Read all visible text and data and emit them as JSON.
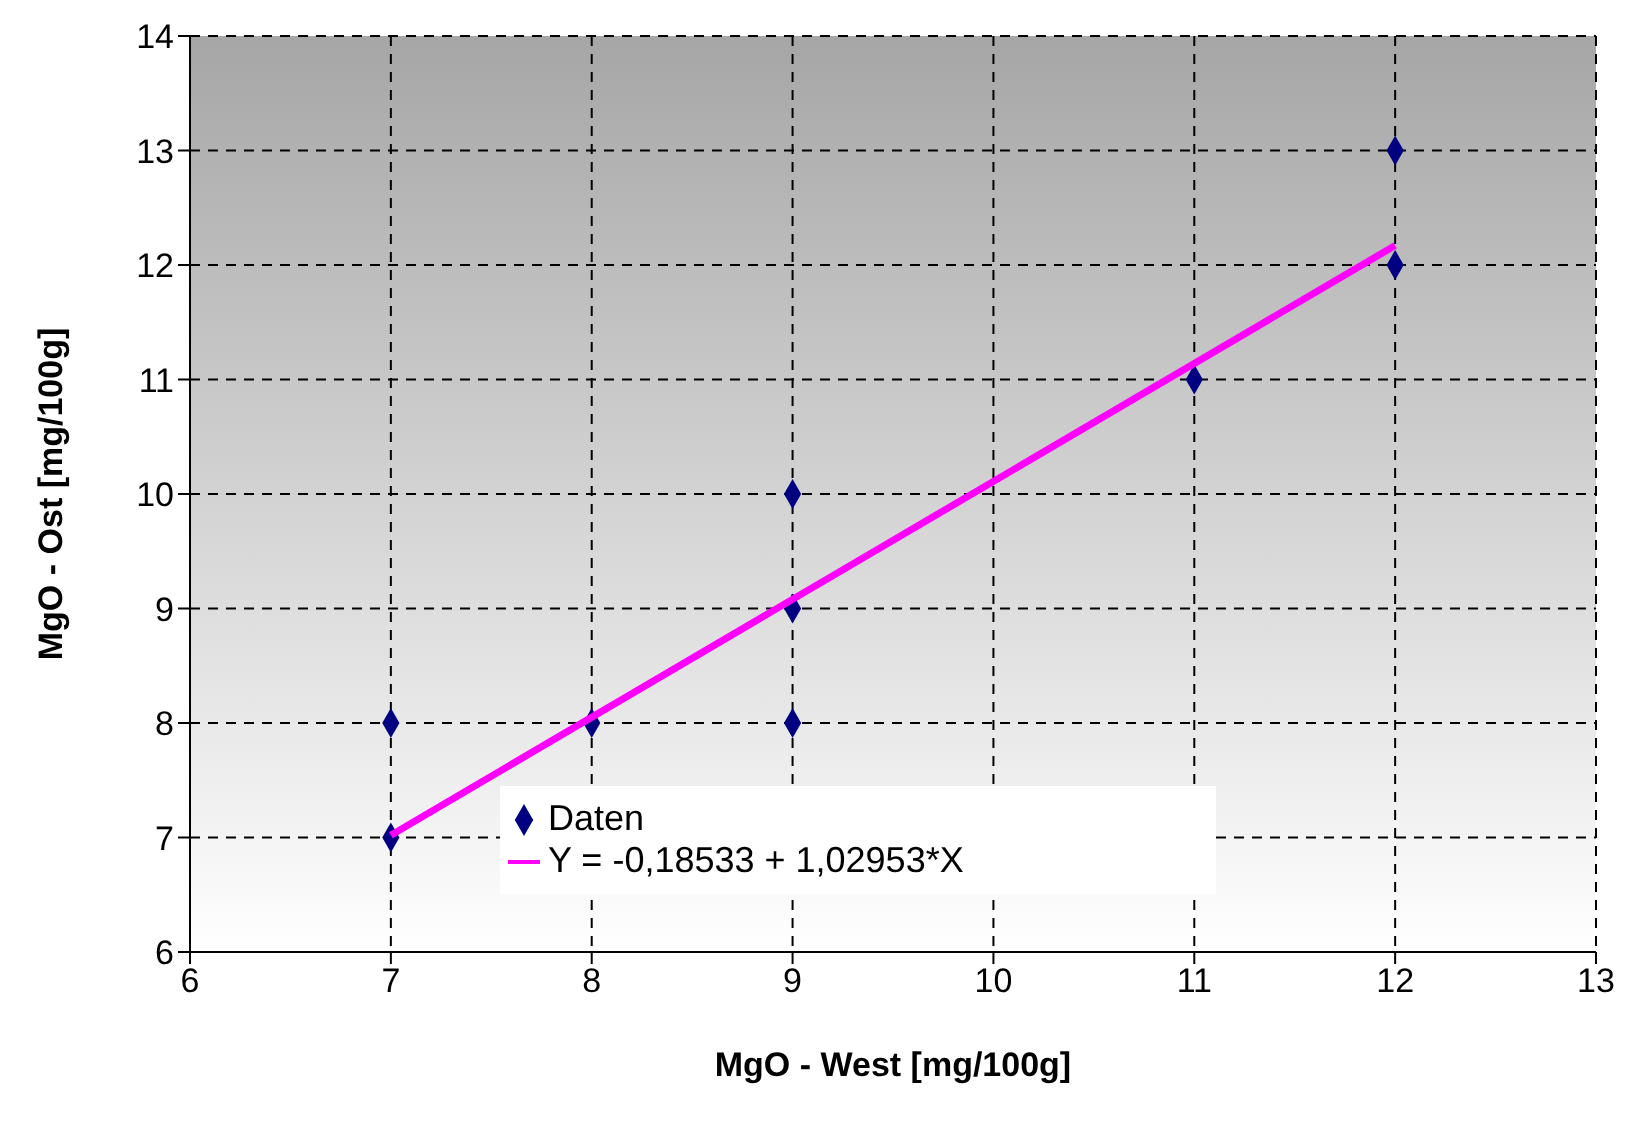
{
  "chart_data": {
    "type": "scatter",
    "xlabel": "MgO - West   [mg/100g]",
    "ylabel": "MgO - Ost   [mg/100g]",
    "xlim": [
      6,
      13
    ],
    "xticks": [
      6,
      7,
      8,
      9,
      10,
      11,
      12,
      13
    ],
    "ylim": [
      6,
      14
    ],
    "yticks": [
      6,
      7,
      8,
      9,
      10,
      11,
      12,
      13,
      14
    ],
    "grid": true,
    "legend": "bottom",
    "marker": "diamond",
    "series": [
      {
        "name": "Daten",
        "color": "#000080",
        "x": [
          7,
          7,
          8,
          9,
          9,
          9,
          11,
          12,
          12
        ],
        "values": [
          8,
          7,
          8,
          10,
          9,
          8,
          11,
          13,
          12
        ]
      },
      {
        "name": "Y = -0,18533 + 1,02953*X",
        "type": "line",
        "marker": "none",
        "line_style": "solid",
        "color": "#ff00ff",
        "x": [
          7,
          12
        ],
        "values": [
          7.02,
          12.17
        ]
      }
    ]
  }
}
